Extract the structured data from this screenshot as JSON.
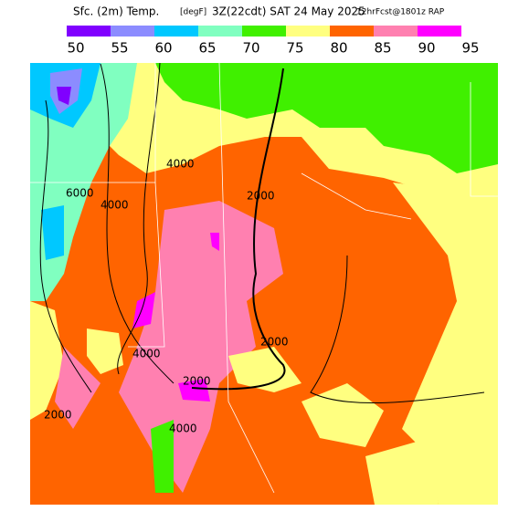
{
  "header": {
    "parts": [
      "Sfc. (2m) Temp.",
      "[degF]",
      "3Z(22cdt) SAT 24 May 2025",
      "12hrFcst@1801z RAP"
    ]
  },
  "colorbar": {
    "colors": [
      "#8000ff",
      "#8c8cff",
      "#00c8ff",
      "#80ffc0",
      "#40f000",
      "#ffff80",
      "#ff6400",
      "#ff80b0",
      "#ff00ff"
    ],
    "labels": [
      50,
      55,
      60,
      65,
      70,
      75,
      80,
      85,
      90,
      95
    ]
  },
  "contour_labels": [
    "6000",
    "4000",
    "4000",
    "2000",
    "2000",
    "4000",
    "2000",
    "4000",
    "2000"
  ]
}
